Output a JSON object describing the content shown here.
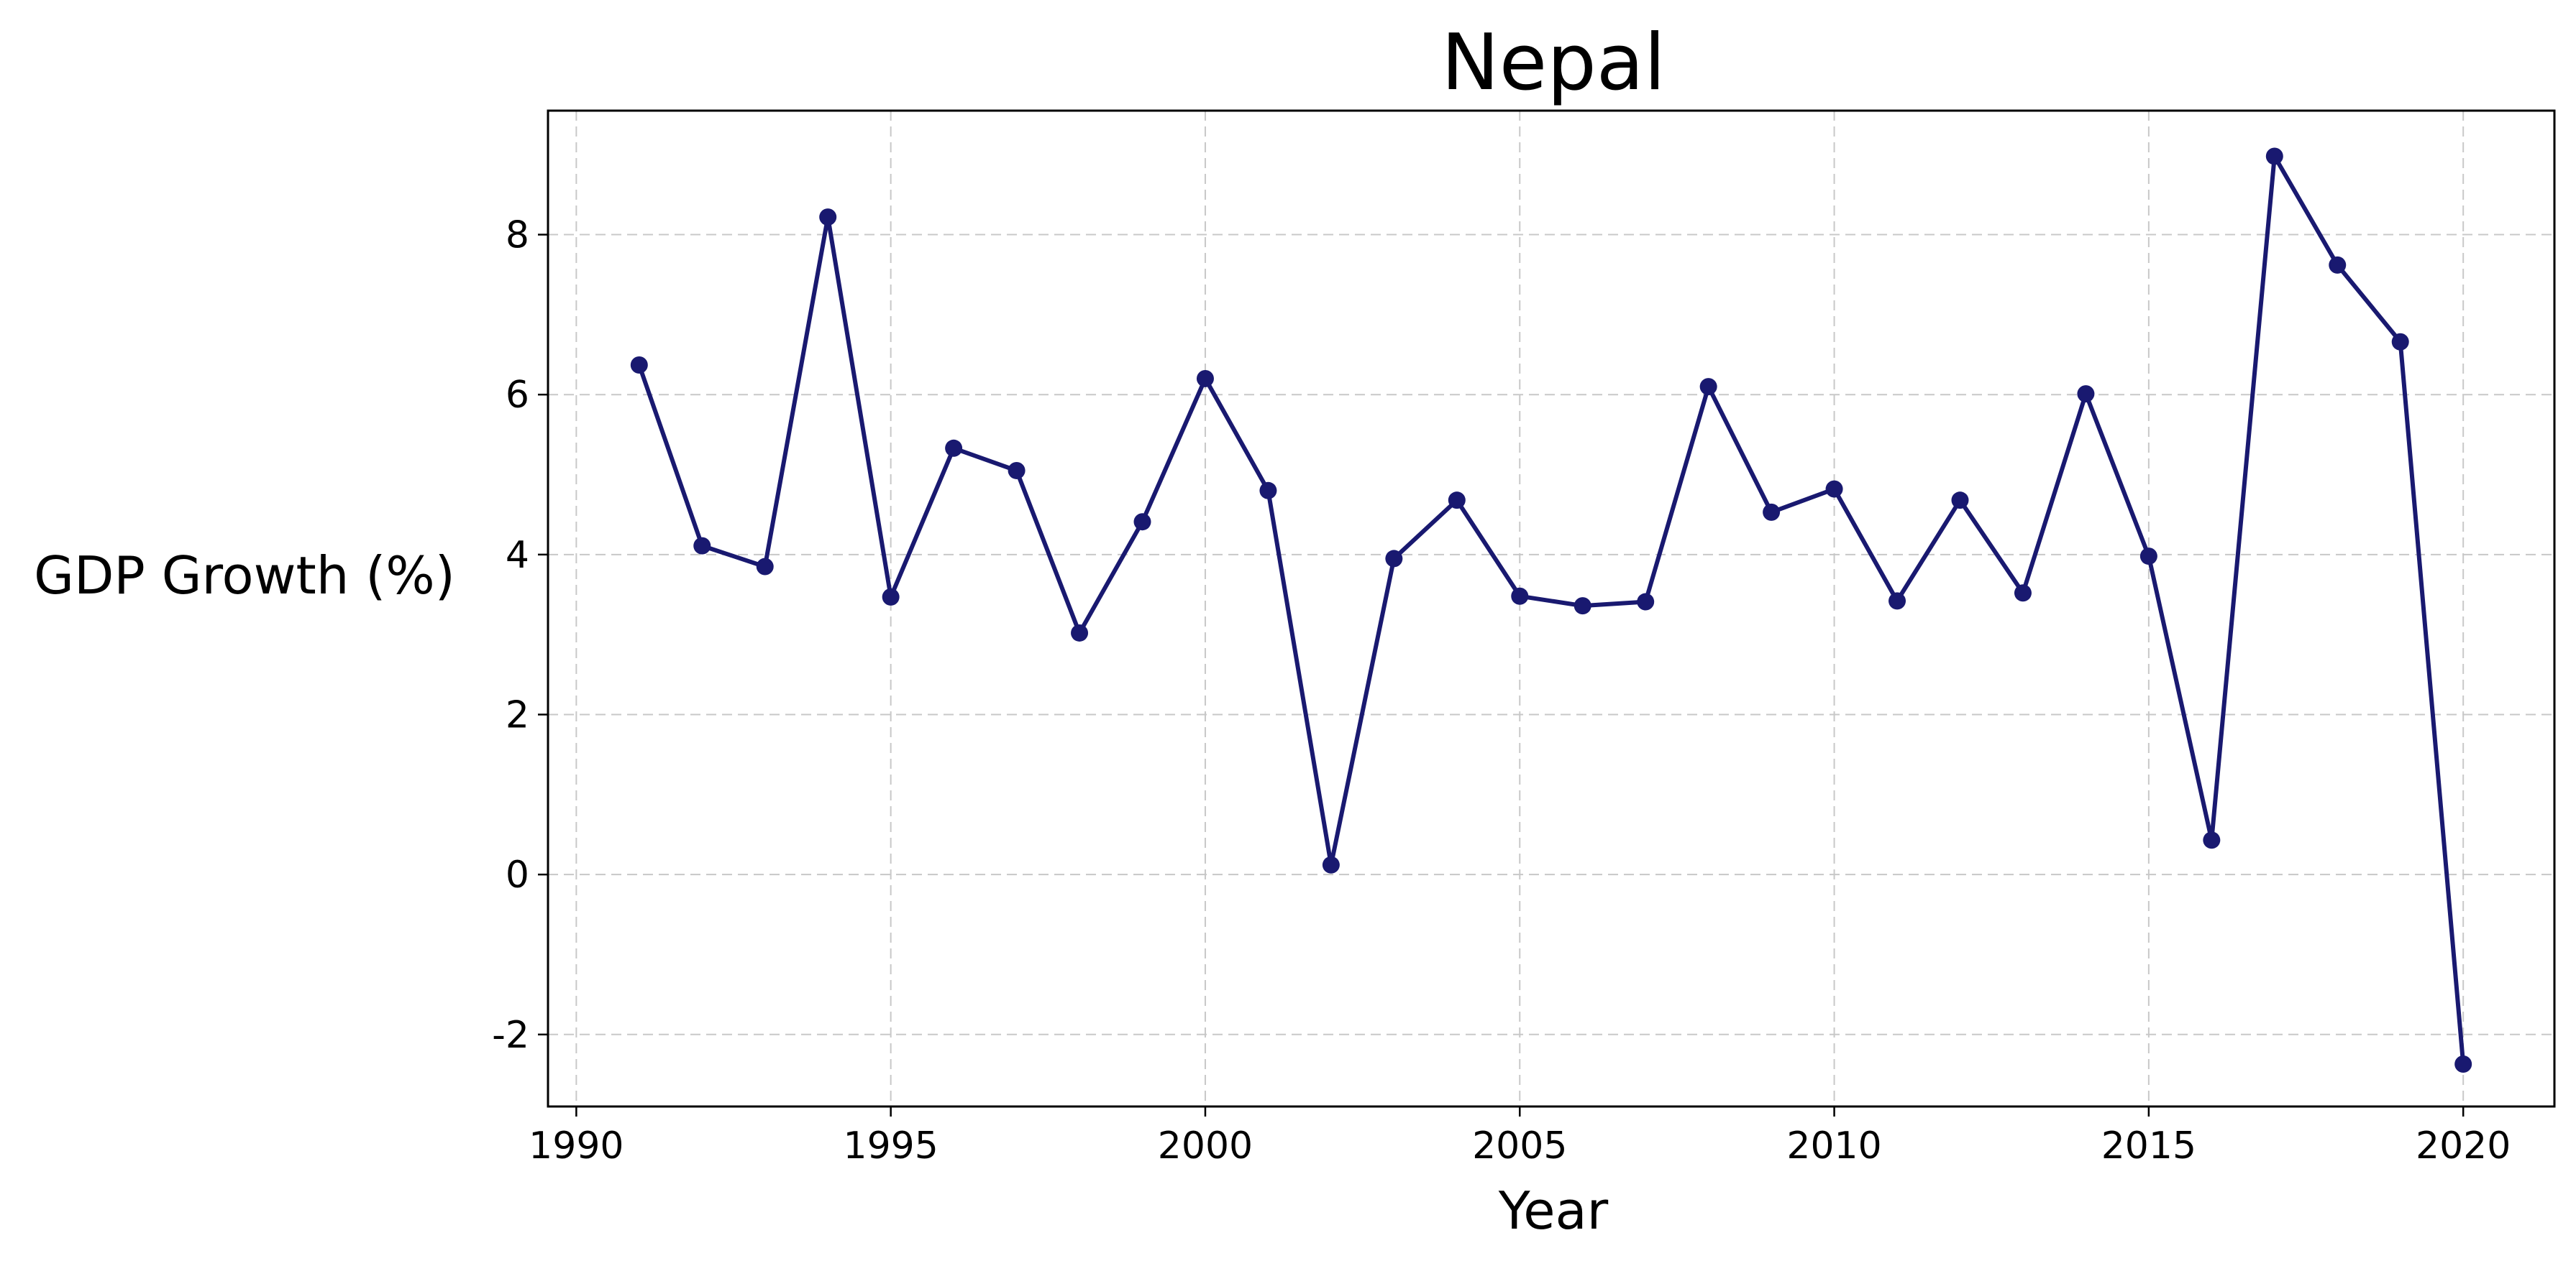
{
  "chart_data": {
    "type": "line",
    "title": "Nepal",
    "xlabel": "Year",
    "ylabel": "GDP Growth (%)",
    "xlim": [
      1989.55,
      2021.45
    ],
    "ylim": [
      -2.9,
      9.55
    ],
    "x_ticks": [
      1990,
      1995,
      2000,
      2005,
      2010,
      2015,
      2020
    ],
    "x_tick_labels": [
      "1990",
      "1995",
      "2000",
      "2005",
      "2010",
      "2015",
      "2020"
    ],
    "y_ticks": [
      -2,
      0,
      2,
      4,
      6,
      8
    ],
    "y_tick_labels": [
      "-2",
      "0",
      "2",
      "4",
      "6",
      "8"
    ],
    "grid": true,
    "legend": "none",
    "series": [
      {
        "color": "#191970",
        "marker": "circle",
        "x": [
          1991,
          1992,
          1993,
          1994,
          1995,
          1996,
          1997,
          1998,
          1999,
          2000,
          2001,
          2002,
          2003,
          2004,
          2005,
          2006,
          2007,
          2008,
          2009,
          2010,
          2011,
          2012,
          2013,
          2014,
          2015,
          2016,
          2017,
          2018,
          2019,
          2020
        ],
        "values": [
          6.37,
          4.11,
          3.85,
          8.22,
          3.47,
          5.33,
          5.05,
          3.02,
          4.41,
          6.2,
          4.8,
          0.12,
          3.95,
          4.68,
          3.48,
          3.36,
          3.41,
          6.1,
          4.53,
          4.82,
          3.42,
          4.68,
          3.52,
          6.01,
          3.98,
          0.43,
          8.98,
          7.62,
          6.66,
          -2.37
        ]
      }
    ]
  }
}
